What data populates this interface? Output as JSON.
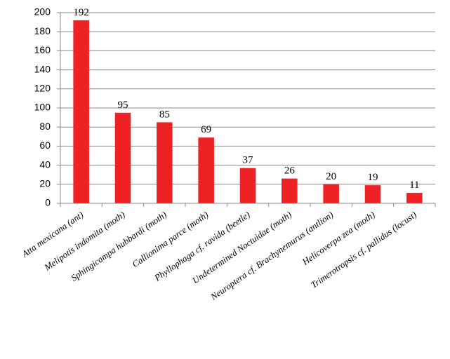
{
  "chart_data": {
    "type": "bar",
    "categories": [
      "Atta mexicana (ant)",
      "Melipotis indomita (moth)",
      "Sphingicampa hubbardi (moth)",
      "Callionima parce (moth)",
      "Phyllophaga cf. ravida (beetle)",
      "Undetermined Noctuidae (moth)",
      "Neuroptera cf. Brachynemurus (antlion)",
      "Helicoverpa zea (moth)",
      "Trimerotropsis cf. pallidus (locust)"
    ],
    "values": [
      192,
      95,
      85,
      69,
      37,
      26,
      20,
      19,
      11
    ],
    "color": "#ee2124",
    "ylim": [
      0,
      200
    ],
    "yticks": [
      0,
      20,
      40,
      60,
      80,
      100,
      120,
      140,
      160,
      180,
      200
    ],
    "grid": true
  }
}
